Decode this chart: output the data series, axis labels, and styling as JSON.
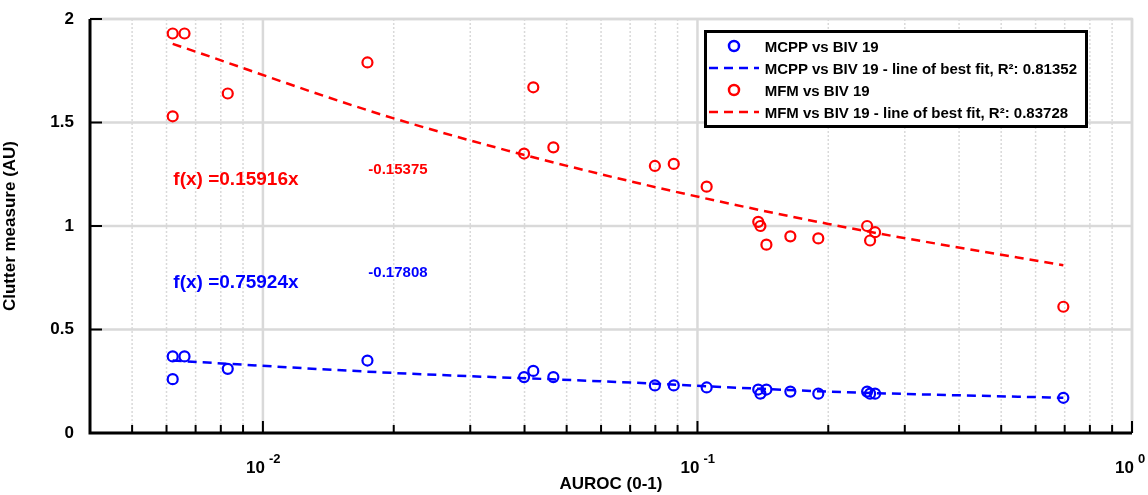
{
  "chart_data": {
    "type": "scatter",
    "xlabel": "AUROC (0-1)",
    "ylabel": "Clutter measure (AU)",
    "log": "x",
    "xlim": [
      0.004,
      1
    ],
    "ylim": [
      0,
      2
    ],
    "xticks": [
      {
        "value": 0.005,
        "label": null
      },
      {
        "value": 0.006,
        "label": null
      },
      {
        "value": 0.007,
        "label": null
      },
      {
        "value": 0.008,
        "label": null
      },
      {
        "value": 0.009,
        "label": null
      },
      {
        "value": 0.01,
        "label": "10$^{-2}$"
      },
      {
        "value": 0.02,
        "label": null
      },
      {
        "value": 0.03,
        "label": null
      },
      {
        "value": 0.04,
        "label": null
      },
      {
        "value": 0.05,
        "label": null
      },
      {
        "value": 0.06,
        "label": null
      },
      {
        "value": 0.07,
        "label": null
      },
      {
        "value": 0.08,
        "label": null
      },
      {
        "value": 0.09,
        "label": null
      },
      {
        "value": 0.1,
        "label": "10$^{-1}$"
      },
      {
        "value": 0.2,
        "label": null
      },
      {
        "value": 0.3,
        "label": null
      },
      {
        "value": 0.4,
        "label": null
      },
      {
        "value": 0.5,
        "label": null
      },
      {
        "value": 0.6,
        "label": null
      },
      {
        "value": 0.7,
        "label": null
      },
      {
        "value": 0.8,
        "label": null
      },
      {
        "value": 0.9,
        "label": null
      },
      {
        "value": 1,
        "label": "10$^{0}$"
      }
    ],
    "yticks": [
      0,
      0.5,
      1,
      1.5,
      2
    ],
    "grid": true,
    "legend": "top right",
    "series": [
      {
        "name": "MCPP vs BIV 19",
        "type": "scatter",
        "marker": "circle",
        "color": "#0000ff",
        "x": [
          0.0062,
          0.0066,
          0.0062,
          0.0083,
          0.0174,
          0.0399,
          0.0419,
          0.0466,
          0.0798,
          0.0882,
          0.105,
          0.138,
          0.1396,
          0.1441,
          0.1636,
          0.1897,
          0.2457,
          0.2496,
          0.2563,
          0.695
        ],
        "values": [
          0.37,
          0.37,
          0.26,
          0.31,
          0.35,
          0.27,
          0.3,
          0.27,
          0.23,
          0.23,
          0.22,
          0.21,
          0.19,
          0.21,
          0.2,
          0.19,
          0.2,
          0.19,
          0.19,
          0.17
        ]
      },
      {
        "name": "MCPP vs BIV 19 - line of best fit, R²: 0.81352",
        "type": "line",
        "marker": "none",
        "line_style": "dashed",
        "color": "#0000ff",
        "x": [
          0.0062,
          0.02,
          0.06,
          0.2,
          0.695
        ],
        "values": [
          0.35,
          0.29,
          0.25,
          0.2,
          0.17
        ]
      },
      {
        "name": "MFM vs BIV 19",
        "type": "scatter",
        "marker": "circle",
        "color": "#ff0000",
        "x": [
          0.0062,
          0.0066,
          0.0062,
          0.0083,
          0.0174,
          0.0419,
          0.0399,
          0.0466,
          0.0798,
          0.0882,
          0.105,
          0.138,
          0.1396,
          0.1441,
          0.1636,
          0.1897,
          0.2457,
          0.2496,
          0.2563,
          0.695
        ],
        "values": [
          1.93,
          1.93,
          1.53,
          1.64,
          1.79,
          1.67,
          1.35,
          1.38,
          1.29,
          1.3,
          1.19,
          1.02,
          1.0,
          0.91,
          0.95,
          0.94,
          1.0,
          0.93,
          0.97,
          0.61
        ]
      },
      {
        "name": "MFM vs BIV 19 - line of best fit, R²: 0.83728",
        "type": "line",
        "marker": "none",
        "line_style": "dashed",
        "color": "#ff0000",
        "x": [
          0.0062,
          0.02,
          0.06,
          0.2,
          0.695
        ],
        "values": [
          1.88,
          1.52,
          1.25,
          1.01,
          0.81
        ]
      }
    ],
    "annotations": [
      "f(x) =0.15916x$^{-0.15375}$",
      "f(x) =0.75924x$^{-0.17808}$"
    ]
  }
}
